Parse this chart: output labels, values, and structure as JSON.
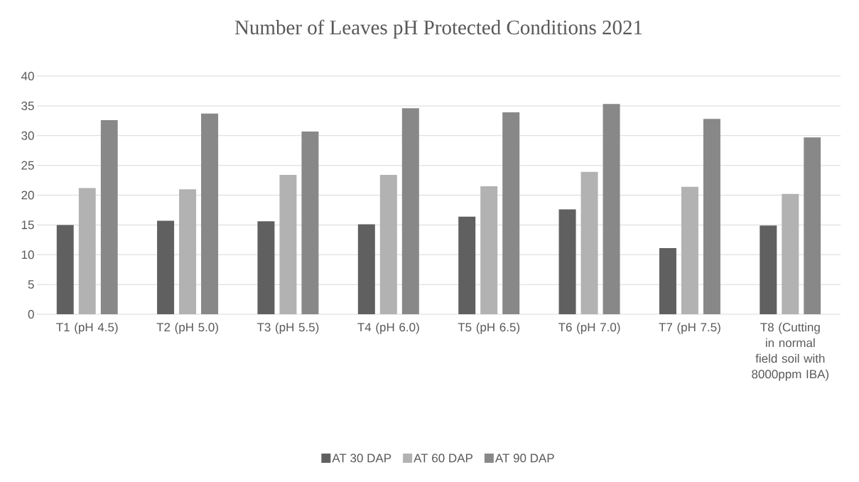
{
  "chart_data": {
    "type": "bar",
    "title": "Number of Leaves pH Protected Conditions 2021",
    "categories": [
      "T1 (pH 4.5)",
      "T2 (pH 5.0)",
      "T3 (pH 5.5)",
      "T4 (pH 6.0)",
      "T5 (pH 6.5)",
      "T6 (pH 7.0)",
      "T7 (pH 7.5)",
      "T8 (Cutting in normal field soil with 8000ppm IBA)"
    ],
    "series": [
      {
        "name": "AT 30 DAP",
        "color": "#606060",
        "values": [
          15.0,
          15.7,
          15.6,
          15.1,
          16.4,
          17.6,
          11.1,
          14.9
        ]
      },
      {
        "name": "AT 60 DAP",
        "color": "#b2b2b2",
        "values": [
          21.2,
          21.0,
          23.4,
          23.4,
          21.5,
          23.9,
          21.4,
          20.2
        ]
      },
      {
        "name": "AT 90 DAP",
        "color": "#888888",
        "values": [
          32.6,
          33.7,
          30.7,
          34.6,
          33.9,
          35.3,
          32.8,
          29.7
        ]
      }
    ],
    "ylim": [
      0,
      40
    ],
    "yticks": [
      0,
      5,
      10,
      15,
      20,
      25,
      30,
      35,
      40
    ],
    "grid": "y",
    "legend": "bottom"
  }
}
